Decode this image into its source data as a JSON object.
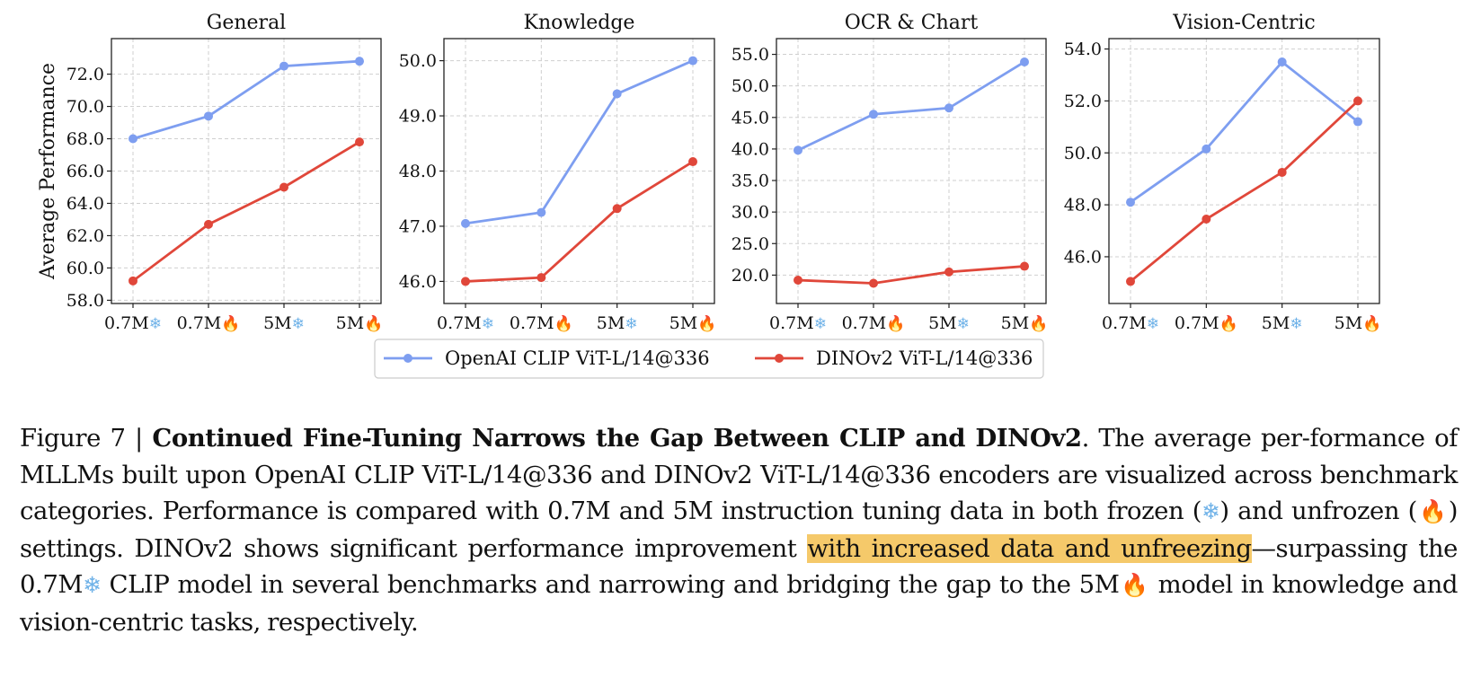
{
  "chart_data": [
    {
      "type": "line",
      "title": "General",
      "ylabel": "Average Performance",
      "categories": [
        "0.7M",
        "0.7M",
        "5M",
        "5M"
      ],
      "category_icons": [
        "snowflake-icon",
        "fire-icon",
        "snowflake-icon",
        "fire-icon"
      ],
      "ylim": [
        57.8,
        74.2
      ],
      "yticks": [
        "58.0",
        "60.0",
        "62.0",
        "64.0",
        "66.0",
        "68.0",
        "70.0",
        "72.0"
      ],
      "series": [
        {
          "name": "OpenAI CLIP ViT-L/14@336",
          "values": [
            68.0,
            69.4,
            72.5,
            72.8
          ]
        },
        {
          "name": "DINOv2 ViT-L/14@336",
          "values": [
            59.2,
            62.7,
            65.0,
            67.8
          ]
        }
      ],
      "grid": true
    },
    {
      "type": "line",
      "title": "Knowledge",
      "ylabel": "",
      "categories": [
        "0.7M",
        "0.7M",
        "5M",
        "5M"
      ],
      "category_icons": [
        "snowflake-icon",
        "fire-icon",
        "snowflake-icon",
        "fire-icon"
      ],
      "ylim": [
        45.6,
        50.4
      ],
      "yticks": [
        "46.0",
        "47.0",
        "48.0",
        "49.0",
        "50.0"
      ],
      "series": [
        {
          "name": "OpenAI CLIP ViT-L/14@336",
          "values": [
            47.05,
            47.25,
            49.4,
            50.0
          ]
        },
        {
          "name": "DINOv2 ViT-L/14@336",
          "values": [
            46.0,
            46.07,
            47.32,
            48.17
          ]
        }
      ],
      "grid": true
    },
    {
      "type": "line",
      "title": "OCR & Chart",
      "ylabel": "",
      "categories": [
        "0.7M",
        "0.7M",
        "5M",
        "5M"
      ],
      "category_icons": [
        "snowflake-icon",
        "fire-icon",
        "snowflake-icon",
        "fire-icon"
      ],
      "ylim": [
        15.5,
        57.5
      ],
      "yticks": [
        "20.0",
        "25.0",
        "30.0",
        "35.0",
        "40.0",
        "45.0",
        "50.0",
        "55.0"
      ],
      "series": [
        {
          "name": "OpenAI CLIP ViT-L/14@336",
          "values": [
            39.8,
            45.5,
            46.5,
            53.8
          ]
        },
        {
          "name": "DINOv2 ViT-L/14@336",
          "values": [
            19.2,
            18.7,
            20.5,
            21.4
          ]
        }
      ],
      "grid": true
    },
    {
      "type": "line",
      "title": "Vision-Centric",
      "ylabel": "",
      "categories": [
        "0.7M",
        "0.7M",
        "5M",
        "5M"
      ],
      "category_icons": [
        "snowflake-icon",
        "fire-icon",
        "snowflake-icon",
        "fire-icon"
      ],
      "ylim": [
        44.2,
        54.4
      ],
      "yticks": [
        "46.0",
        "48.0",
        "50.0",
        "52.0",
        "54.0"
      ],
      "series": [
        {
          "name": "OpenAI CLIP ViT-L/14@336",
          "values": [
            48.1,
            50.15,
            53.5,
            51.2
          ]
        },
        {
          "name": "DINOv2 ViT-L/14@336",
          "values": [
            45.05,
            47.45,
            49.25,
            52.0
          ]
        }
      ],
      "grid": true
    }
  ],
  "legend": {
    "placement": "bottom-center",
    "entries": [
      {
        "label": "OpenAI CLIP ViT-L/14@336",
        "color": "#7e9ef0"
      },
      {
        "label": "DINOv2 ViT-L/14@336",
        "color": "#e0473a"
      }
    ]
  },
  "colors": {
    "clip": "#7e9ef0",
    "dino": "#e0473a",
    "highlight": "#f5c96a",
    "snowflake": "#6fb2e8",
    "fire": "#f08a1c"
  },
  "caption": {
    "label": "Figure 7 | ",
    "title": "Continued Fine-Tuning Narrows the Gap Between CLIP and DINOv2",
    "text1": ". The average per-formance of MLLMs built upon OpenAI CLIP ViT-L/14@336 and DINOv2 ViT-L/14@336 encoders are visualized across benchmark categories. Performance is compared with 0.7M and 5M instruction tuning data in both frozen (",
    "text2": ") and unfrozen (",
    "text3": ") settings. DINOv2 shows significant performance improvement ",
    "highlighted": "with increased data and unfreezing",
    "text4": "—surpassing the 0.7M",
    "text5": " CLIP model in several benchmarks and narrowing and bridging the gap to the 5M",
    "text6": " model in knowledge and vision-centric tasks, respectively."
  }
}
